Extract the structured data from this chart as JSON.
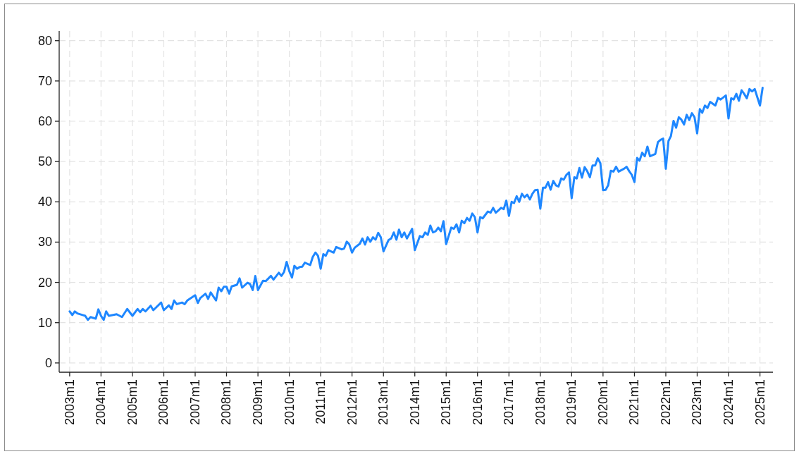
{
  "chart_data": {
    "type": "line",
    "color": "#1e87ff",
    "x": [
      "2003-01",
      "2003-02",
      "2003-03",
      "2003-04",
      "2003-06",
      "2003-07",
      "2003-08",
      "2003-09",
      "2003-11",
      "2003-12",
      "2004-01",
      "2004-02",
      "2004-03",
      "2004-04",
      "2004-07",
      "2004-09",
      "2004-11",
      "2005-01",
      "2005-03",
      "2005-04",
      "2005-05",
      "2005-06",
      "2005-08",
      "2005-09",
      "2005-12",
      "2006-01",
      "2006-03",
      "2006-04",
      "2006-05",
      "2006-06",
      "2006-08",
      "2006-09",
      "2006-10",
      "2007-01",
      "2007-02",
      "2007-03",
      "2007-05",
      "2007-06",
      "2007-07",
      "2007-09",
      "2007-10",
      "2007-11",
      "2007-12",
      "2008-01",
      "2008-02",
      "2008-03",
      "2008-05",
      "2008-06",
      "2008-07",
      "2008-09",
      "2008-10",
      "2008-11",
      "2008-12",
      "2009-01",
      "2009-03",
      "2009-04",
      "2009-06",
      "2009-07",
      "2009-09",
      "2009-10",
      "2009-11",
      "2009-12",
      "2010-01",
      "2010-02",
      "2010-03",
      "2010-04",
      "2010-05",
      "2010-06",
      "2010-07",
      "2010-09",
      "2010-10",
      "2010-11",
      "2010-12",
      "2011-01",
      "2011-02",
      "2011-03",
      "2011-04",
      "2011-06",
      "2011-07",
      "2011-09",
      "2011-10",
      "2011-11",
      "2011-12",
      "2012-01",
      "2012-02",
      "2012-04",
      "2012-05",
      "2012-06",
      "2012-07",
      "2012-08",
      "2012-09",
      "2012-10",
      "2012-11",
      "2012-12",
      "2013-01",
      "2013-03",
      "2013-04",
      "2013-05",
      "2013-06",
      "2013-07",
      "2013-08",
      "2013-09",
      "2013-10",
      "2013-11",
      "2013-12",
      "2014-01",
      "2014-03",
      "2014-04",
      "2014-05",
      "2014-06",
      "2014-07",
      "2014-08",
      "2014-09",
      "2014-10",
      "2014-11",
      "2014-12",
      "2015-01",
      "2015-03",
      "2015-04",
      "2015-05",
      "2015-06",
      "2015-07",
      "2015-08",
      "2015-09",
      "2015-10",
      "2015-11",
      "2015-12",
      "2016-01",
      "2016-02",
      "2016-03",
      "2016-05",
      "2016-06",
      "2016-07",
      "2016-08",
      "2016-09",
      "2016-10",
      "2016-11",
      "2016-12",
      "2017-01",
      "2017-02",
      "2017-03",
      "2017-04",
      "2017-05",
      "2017-06",
      "2017-07",
      "2017-08",
      "2017-09",
      "2017-10",
      "2017-11",
      "2017-12",
      "2018-01",
      "2018-02",
      "2018-03",
      "2018-04",
      "2018-05",
      "2018-06",
      "2018-07",
      "2018-08",
      "2018-09",
      "2018-10",
      "2018-11",
      "2018-12",
      "2019-01",
      "2019-02",
      "2019-03",
      "2019-04",
      "2019-05",
      "2019-06",
      "2019-07",
      "2019-08",
      "2019-09",
      "2019-10",
      "2019-11",
      "2019-12",
      "2020-01",
      "2020-02",
      "2020-03",
      "2020-04",
      "2020-05",
      "2020-06",
      "2020-07",
      "2020-09",
      "2020-10",
      "2020-11",
      "2020-12",
      "2021-01",
      "2021-02",
      "2021-03",
      "2021-04",
      "2021-05",
      "2021-06",
      "2021-07",
      "2021-09",
      "2021-10",
      "2021-11",
      "2021-12",
      "2022-01",
      "2022-02",
      "2022-03",
      "2022-04",
      "2022-05",
      "2022-06",
      "2022-07",
      "2022-08",
      "2022-09",
      "2022-10",
      "2022-11",
      "2022-12",
      "2023-01",
      "2023-02",
      "2023-03",
      "2023-04",
      "2023-05",
      "2023-06",
      "2023-08",
      "2023-09",
      "2023-10",
      "2023-12",
      "2024-01",
      "2024-02",
      "2024-03",
      "2024-04",
      "2024-05",
      "2024-06",
      "2024-07",
      "2024-08",
      "2024-09",
      "2024-10",
      "2024-11",
      "2024-12",
      "2025-01",
      "2025-02"
    ],
    "values": [
      12.8,
      11.9,
      12.8,
      12.3,
      11.9,
      11.7,
      10.7,
      11.4,
      11.0,
      13.3,
      11.7,
      10.7,
      12.8,
      11.7,
      12.1,
      11.4,
      13.4,
      11.7,
      13.4,
      12.6,
      13.4,
      12.8,
      14.2,
      13.1,
      15.0,
      13.1,
      14.3,
      13.4,
      15.5,
      14.6,
      15.0,
      14.6,
      15.5,
      16.8,
      14.9,
      16.1,
      17.2,
      15.9,
      17.5,
      15.5,
      18.7,
      17.8,
      18.9,
      18.9,
      17.2,
      19.0,
      19.4,
      21.0,
      18.7,
      19.9,
      19.6,
      18.1,
      21.6,
      18.1,
      20.4,
      20.3,
      21.6,
      20.7,
      22.4,
      21.6,
      22.6,
      25.1,
      22.8,
      21.2,
      24.1,
      23.4,
      23.8,
      23.9,
      24.9,
      24.3,
      26.3,
      27.4,
      26.6,
      23.4,
      27.0,
      26.6,
      28.0,
      27.4,
      28.8,
      28.2,
      28.4,
      30.1,
      29.4,
      27.4,
      28.6,
      29.6,
      30.9,
      29.4,
      31.2,
      30.1,
      31.2,
      30.6,
      32.3,
      31.2,
      27.7,
      30.5,
      30.9,
      32.4,
      30.6,
      33.1,
      31.2,
      32.4,
      30.9,
      32.1,
      33.3,
      28.0,
      31.5,
      31.2,
      32.4,
      31.8,
      34.1,
      32.4,
      32.7,
      33.6,
      32.7,
      35.2,
      29.5,
      33.6,
      33.3,
      34.4,
      32.4,
      35.3,
      34.7,
      36.0,
      35.3,
      37.1,
      36.2,
      32.4,
      36.2,
      35.9,
      37.6,
      37.3,
      38.5,
      37.3,
      37.9,
      38.5,
      38.2,
      40.3,
      36.5,
      40.0,
      39.7,
      41.4,
      40.0,
      42.0,
      41.1,
      41.8,
      40.6,
      42.0,
      42.9,
      43.0,
      38.3,
      43.5,
      43.5,
      44.9,
      43.0,
      45.2,
      44.1,
      43.8,
      45.8,
      45.5,
      46.7,
      47.3,
      40.9,
      46.1,
      45.8,
      48.4,
      46.0,
      48.6,
      47.6,
      46.1,
      49.0,
      49.0,
      50.8,
      49.6,
      42.9,
      43.0,
      44.1,
      47.7,
      47.5,
      48.7,
      47.5,
      48.2,
      48.7,
      47.6,
      46.7,
      44.9,
      50.9,
      50.2,
      52.2,
      51.3,
      53.7,
      51.3,
      51.9,
      54.8,
      55.4,
      55.7,
      48.2,
      55.1,
      56.3,
      60.1,
      58.4,
      61.0,
      60.4,
      59.2,
      61.6,
      60.3,
      62.0,
      61.0,
      57.0,
      63.0,
      62.1,
      63.9,
      63.3,
      64.8,
      63.9,
      65.8,
      65.4,
      66.4,
      60.7,
      65.7,
      65.4,
      66.8,
      65.1,
      67.7,
      66.8,
      65.7,
      68.0,
      67.4,
      68.0,
      66.0,
      63.9,
      68.3
    ],
    "xlim": [
      "2002-09",
      "2025-06"
    ],
    "xticks": [
      {
        "value": "2003-01",
        "label": "2003m1"
      },
      {
        "value": "2004-01",
        "label": "2004m1"
      },
      {
        "value": "2005-01",
        "label": "2005m1"
      },
      {
        "value": "2006-01",
        "label": "2006m1"
      },
      {
        "value": "2007-01",
        "label": "2007m1"
      },
      {
        "value": "2008-01",
        "label": "2008m1"
      },
      {
        "value": "2009-01",
        "label": "2009m1"
      },
      {
        "value": "2010-01",
        "label": "2010m1"
      },
      {
        "value": "2011-01",
        "label": "2011m1"
      },
      {
        "value": "2012-01",
        "label": "2012m1"
      },
      {
        "value": "2013-01",
        "label": "2013m1"
      },
      {
        "value": "2014-01",
        "label": "2014m1"
      },
      {
        "value": "2015-01",
        "label": "2015m1"
      },
      {
        "value": "2016-01",
        "label": "2016m1"
      },
      {
        "value": "2017-01",
        "label": "2017m1"
      },
      {
        "value": "2018-01",
        "label": "2018m1"
      },
      {
        "value": "2019-01",
        "label": "2019m1"
      },
      {
        "value": "2020-01",
        "label": "2020m1"
      },
      {
        "value": "2021-01",
        "label": "2021m1"
      },
      {
        "value": "2022-01",
        "label": "2022m1"
      },
      {
        "value": "2023-01",
        "label": "2023m1"
      },
      {
        "value": "2024-01",
        "label": "2024m1"
      },
      {
        "value": "2025-01",
        "label": "2025m1"
      }
    ],
    "ylim": [
      -2.3,
      82.4
    ],
    "yticks": [
      0,
      10,
      20,
      30,
      40,
      50,
      60,
      70,
      80
    ],
    "grid": true
  }
}
